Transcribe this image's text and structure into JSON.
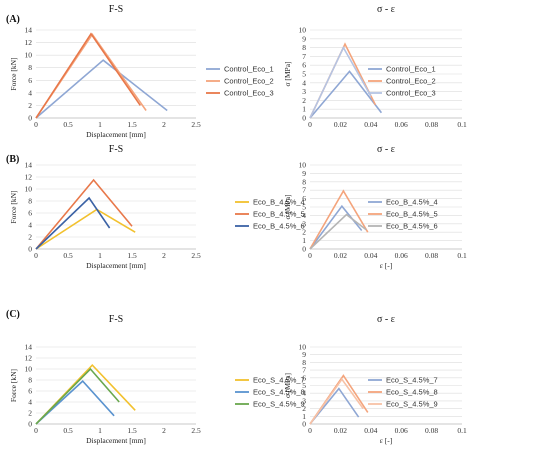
{
  "panel_labels": [
    "(A)",
    "(B)",
    "(C)"
  ],
  "chart_data": [
    {
      "type": "line",
      "title": "F-S",
      "xlabel": "Displacement [mm]",
      "ylabel": "Force [kN]",
      "xlim": [
        0,
        2.5
      ],
      "ylim": [
        0,
        14
      ],
      "xticks": [
        "0",
        "0.5",
        "1",
        "1.5",
        "2",
        "2.5"
      ],
      "yticks": [
        "0",
        "2",
        "4",
        "6",
        "8",
        "10",
        "12",
        "14"
      ],
      "grid": true,
      "legend": "right",
      "series": [
        {
          "name": "Control_Eco_1",
          "color": "#8fa7d4",
          "x": [
            0,
            1.05,
            2.05
          ],
          "y": [
            0,
            9.2,
            1.2
          ]
        },
        {
          "name": "Control_Eco_2",
          "color": "#f4a47c",
          "x": [
            0,
            0.88,
            1.72
          ],
          "y": [
            0,
            13.3,
            1.2
          ]
        },
        {
          "name": "Control_Eco_3",
          "color": "#e8784a",
          "x": [
            0,
            0.86,
            1.63
          ],
          "y": [
            0,
            13.4,
            2.0
          ]
        }
      ]
    },
    {
      "type": "line",
      "title": "σ - ε",
      "xlabel": "",
      "ylabel": "σ [MPa]",
      "xlim": [
        0,
        0.1
      ],
      "ylim": [
        0,
        10
      ],
      "xticks": [
        "0",
        "0.02",
        "0.04",
        "0.06",
        "0.08",
        "0.1"
      ],
      "yticks": [
        "0",
        "1",
        "2",
        "3",
        "4",
        "5",
        "6",
        "7",
        "8",
        "9",
        "10"
      ],
      "grid": true,
      "legend": "right",
      "series": [
        {
          "name": "Control_Eco_1",
          "color": "#8fa7d4",
          "x": [
            0,
            0.026,
            0.047
          ],
          "y": [
            0,
            5.3,
            0.6
          ]
        },
        {
          "name": "Control_Eco_2",
          "color": "#f4a47c",
          "x": [
            0,
            0.023,
            0.043
          ],
          "y": [
            0,
            8.4,
            1.5
          ]
        },
        {
          "name": "Control_Eco_3",
          "color": "#b5c4e3",
          "x": [
            0,
            0.022,
            0.04
          ],
          "y": [
            0,
            8.0,
            2.5
          ]
        }
      ]
    },
    {
      "type": "line",
      "title": "F-S",
      "xlabel": "Displacement [mm]",
      "ylabel": "Force [kN]",
      "xlim": [
        0,
        2.5
      ],
      "ylim": [
        0,
        14
      ],
      "xticks": [
        "0",
        "0.5",
        "1",
        "1.5",
        "2",
        "2.5"
      ],
      "yticks": [
        "0",
        "2",
        "4",
        "6",
        "8",
        "10",
        "12",
        "14"
      ],
      "grid": true,
      "legend": "right",
      "series": [
        {
          "name": "Eco_B_4.5%_4",
          "color": "#f2c12e",
          "x": [
            0,
            0.95,
            1.55
          ],
          "y": [
            0,
            6.6,
            2.8
          ]
        },
        {
          "name": "Eco_B_4.5%_5",
          "color": "#e8784a",
          "x": [
            0,
            0.9,
            1.5
          ],
          "y": [
            0,
            11.5,
            3.8
          ]
        },
        {
          "name": "Eco_B_4.5%_6",
          "color": "#3b62a5",
          "x": [
            0,
            0.83,
            1.15
          ],
          "y": [
            0,
            8.5,
            3.5
          ]
        }
      ]
    },
    {
      "type": "line",
      "title": "σ - ε",
      "xlabel": "ε [-]",
      "ylabel": "σ [MPa]",
      "xlim": [
        0,
        0.1
      ],
      "ylim": [
        0,
        10
      ],
      "xticks": [
        "0",
        "0.02",
        "0.04",
        "0.06",
        "0.08",
        "0.1"
      ],
      "yticks": [
        "0",
        "1",
        "2",
        "3",
        "4",
        "5",
        "6",
        "7",
        "8",
        "9",
        "10"
      ],
      "grid": true,
      "legend": "right",
      "series": [
        {
          "name": "Eco_B_4.5%_4",
          "color": "#8fa7d4",
          "x": [
            0,
            0.021,
            0.034
          ],
          "y": [
            0,
            5.1,
            2.2
          ]
        },
        {
          "name": "Eco_B_4.5%_5",
          "color": "#f4a47c",
          "x": [
            0,
            0.022,
            0.038
          ],
          "y": [
            0,
            6.9,
            2.0
          ]
        },
        {
          "name": "Eco_B_4.5%_6",
          "color": "#b5b5b5",
          "x": [
            0,
            0.024,
            0.037
          ],
          "y": [
            0,
            4.1,
            2.3
          ]
        }
      ]
    },
    {
      "type": "line",
      "title": "F-S",
      "xlabel": "Displacement [mm]",
      "ylabel": "Force [kN]",
      "xlim": [
        0,
        2.5
      ],
      "ylim": [
        0,
        14
      ],
      "xticks": [
        "0",
        "0.5",
        "1",
        "1.5",
        "2",
        "2.5"
      ],
      "yticks": [
        "0",
        "2",
        "4",
        "6",
        "8",
        "10",
        "12",
        "14"
      ],
      "grid": true,
      "legend": "right",
      "series": [
        {
          "name": "Eco_S_4.5%_7",
          "color": "#f2c12e",
          "x": [
            0,
            0.88,
            1.55
          ],
          "y": [
            0,
            10.7,
            2.5
          ]
        },
        {
          "name": "Eco_S_4.5%_8",
          "color": "#5a93cf",
          "x": [
            0,
            0.73,
            1.22
          ],
          "y": [
            0,
            7.8,
            1.5
          ]
        },
        {
          "name": "Eco_S_4.5%_9",
          "color": "#6aa84f",
          "x": [
            0,
            0.85,
            1.3
          ],
          "y": [
            0,
            10.0,
            4.0
          ]
        }
      ]
    },
    {
      "type": "line",
      "title": "σ - ε",
      "xlabel": "ε [-]",
      "ylabel": "σ [MPa]",
      "xlim": [
        0,
        0.1
      ],
      "ylim": [
        0,
        10
      ],
      "xticks": [
        "0",
        "0.02",
        "0.04",
        "0.06",
        "0.08",
        "0.1"
      ],
      "yticks": [
        "0",
        "1",
        "2",
        "3",
        "4",
        "5",
        "6",
        "7",
        "8",
        "9",
        "10"
      ],
      "grid": true,
      "legend": "right",
      "series": [
        {
          "name": "Eco_S_4.5%_7",
          "color": "#8fa7d4",
          "x": [
            0,
            0.019,
            0.032
          ],
          "y": [
            0,
            4.6,
            0.9
          ]
        },
        {
          "name": "Eco_S_4.5%_8",
          "color": "#f4a47c",
          "x": [
            0,
            0.022,
            0.038
          ],
          "y": [
            0,
            6.3,
            1.5
          ]
        },
        {
          "name": "Eco_S_4.5%_9",
          "color": "#f7c2a6",
          "x": [
            0,
            0.021,
            0.035
          ],
          "y": [
            0,
            5.8,
            2.0
          ]
        }
      ]
    }
  ]
}
